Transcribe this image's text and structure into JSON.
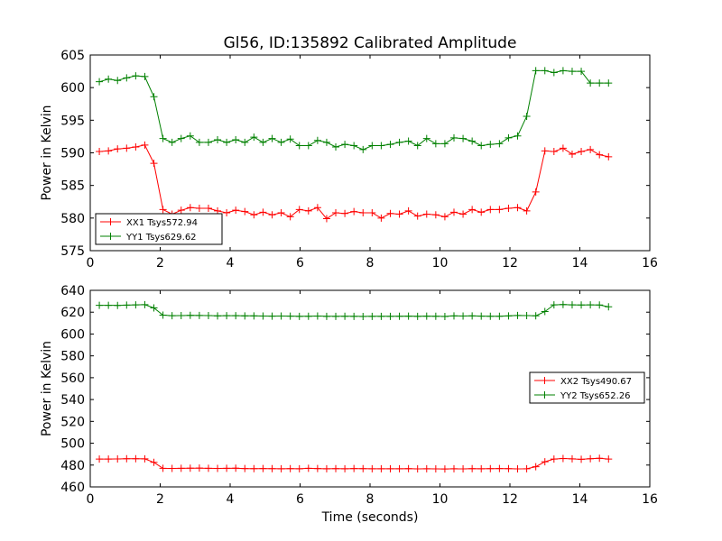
{
  "figure": {
    "title": "Gl56, ID:135892 Calibrated Amplitude"
  },
  "chart_data": [
    {
      "type": "line",
      "title": "Gl56, ID:135892 Calibrated Amplitude",
      "xlabel": "",
      "ylabel": "Power in Kelvin",
      "xlim": [
        0,
        16
      ],
      "ylim": [
        575,
        605
      ],
      "xticks": [
        0,
        2,
        4,
        6,
        8,
        10,
        12,
        14,
        16
      ],
      "yticks": [
        575,
        580,
        585,
        590,
        595,
        600,
        605
      ],
      "grid": false,
      "legend_position": "lower-left",
      "x": [
        0.26,
        0.52,
        0.78,
        1.04,
        1.3,
        1.56,
        1.82,
        2.08,
        2.34,
        2.6,
        2.86,
        3.12,
        3.38,
        3.64,
        3.9,
        4.16,
        4.42,
        4.68,
        4.94,
        5.2,
        5.46,
        5.72,
        5.98,
        6.24,
        6.5,
        6.76,
        7.02,
        7.28,
        7.54,
        7.8,
        8.06,
        8.32,
        8.58,
        8.84,
        9.1,
        9.36,
        9.62,
        9.88,
        10.14,
        10.4,
        10.66,
        10.92,
        11.18,
        11.44,
        11.7,
        11.96,
        12.22,
        12.48,
        12.74,
        13.0,
        13.26,
        13.52,
        13.78,
        14.04,
        14.3,
        14.56,
        14.82
      ],
      "series": [
        {
          "name": "XX1 Tsys572.94",
          "color": "#ff0000",
          "values": [
            590.2,
            590.3,
            590.6,
            590.7,
            590.9,
            591.2,
            588.4,
            581.3,
            580.6,
            581.2,
            581.6,
            581.5,
            581.5,
            581.1,
            580.8,
            581.2,
            581.0,
            580.5,
            580.9,
            580.5,
            580.8,
            580.2,
            581.3,
            581.1,
            581.6,
            579.9,
            580.8,
            580.7,
            581.0,
            580.8,
            580.8,
            580.0,
            580.7,
            580.6,
            581.1,
            580.3,
            580.6,
            580.5,
            580.2,
            580.9,
            580.6,
            581.3,
            580.9,
            581.3,
            581.3,
            581.5,
            581.6,
            581.1,
            584.0,
            590.3,
            590.2,
            590.7,
            589.8,
            590.2,
            590.5,
            589.7,
            589.4
          ]
        },
        {
          "name": "YY1 Tsys629.62",
          "color": "#008000",
          "values": [
            600.9,
            601.3,
            601.1,
            601.5,
            601.8,
            601.7,
            598.6,
            592.2,
            591.6,
            592.2,
            592.6,
            591.6,
            591.6,
            592.0,
            591.6,
            592.0,
            591.6,
            592.4,
            591.6,
            592.2,
            591.6,
            592.1,
            591.1,
            591.1,
            591.9,
            591.6,
            590.9,
            591.3,
            591.1,
            590.5,
            591.1,
            591.1,
            591.3,
            591.6,
            591.8,
            591.1,
            592.2,
            591.4,
            591.4,
            592.3,
            592.2,
            591.8,
            591.1,
            591.3,
            591.4,
            592.3,
            592.6,
            595.6,
            602.6,
            602.6,
            602.3,
            602.6,
            602.5,
            602.5,
            600.7,
            600.7,
            600.7
          ]
        }
      ]
    },
    {
      "type": "line",
      "title": "",
      "xlabel": "Time (seconds)",
      "ylabel": "Power in Kelvin",
      "xlim": [
        0,
        16
      ],
      "ylim": [
        460,
        640
      ],
      "xticks": [
        0,
        2,
        4,
        6,
        8,
        10,
        12,
        14,
        16
      ],
      "yticks": [
        460,
        480,
        500,
        520,
        540,
        560,
        580,
        600,
        620,
        640
      ],
      "grid": false,
      "legend_position": "center-right",
      "x": [
        0.26,
        0.52,
        0.78,
        1.04,
        1.3,
        1.56,
        1.82,
        2.08,
        2.34,
        2.6,
        2.86,
        3.12,
        3.38,
        3.64,
        3.9,
        4.16,
        4.42,
        4.68,
        4.94,
        5.2,
        5.46,
        5.72,
        5.98,
        6.24,
        6.5,
        6.76,
        7.02,
        7.28,
        7.54,
        7.8,
        8.06,
        8.32,
        8.58,
        8.84,
        9.1,
        9.36,
        9.62,
        9.88,
        10.14,
        10.4,
        10.66,
        10.92,
        11.18,
        11.44,
        11.7,
        11.96,
        12.22,
        12.48,
        12.74,
        13.0,
        13.26,
        13.52,
        13.78,
        14.04,
        14.3,
        14.56,
        14.82
      ],
      "series": [
        {
          "name": "XX2 Tsys490.67",
          "color": "#ff0000",
          "values": [
            485.5,
            485.5,
            485.6,
            485.8,
            485.8,
            485.7,
            482.5,
            477.0,
            476.9,
            477.0,
            477.1,
            477.2,
            477.0,
            476.9,
            477.0,
            477.1,
            476.8,
            476.7,
            476.8,
            476.7,
            476.6,
            476.7,
            476.6,
            477.0,
            476.8,
            476.6,
            476.7,
            476.6,
            476.8,
            476.7,
            476.6,
            476.6,
            476.6,
            476.6,
            476.7,
            476.5,
            476.6,
            476.5,
            476.4,
            476.6,
            476.5,
            476.7,
            476.6,
            476.7,
            476.8,
            476.7,
            476.5,
            476.6,
            478.5,
            483.0,
            485.5,
            486.0,
            485.7,
            485.3,
            485.8,
            486.2,
            485.5
          ]
        },
        {
          "name": "YY2 Tsys652.26",
          "color": "#008000",
          "values": [
            626.3,
            626.3,
            626.2,
            626.5,
            626.7,
            626.9,
            623.9,
            617.3,
            616.8,
            616.9,
            617.1,
            617.0,
            616.9,
            616.6,
            616.8,
            616.8,
            616.6,
            616.6,
            616.5,
            616.4,
            616.5,
            616.4,
            616.2,
            616.3,
            616.5,
            616.2,
            616.2,
            616.3,
            616.2,
            616.1,
            616.2,
            616.2,
            616.2,
            616.3,
            616.4,
            616.2,
            616.4,
            616.3,
            616.1,
            616.6,
            616.5,
            616.6,
            616.4,
            616.3,
            616.3,
            616.6,
            617.0,
            616.9,
            616.7,
            620.6,
            626.7,
            627.0,
            626.7,
            626.6,
            626.7,
            626.6,
            624.9
          ]
        }
      ]
    }
  ]
}
